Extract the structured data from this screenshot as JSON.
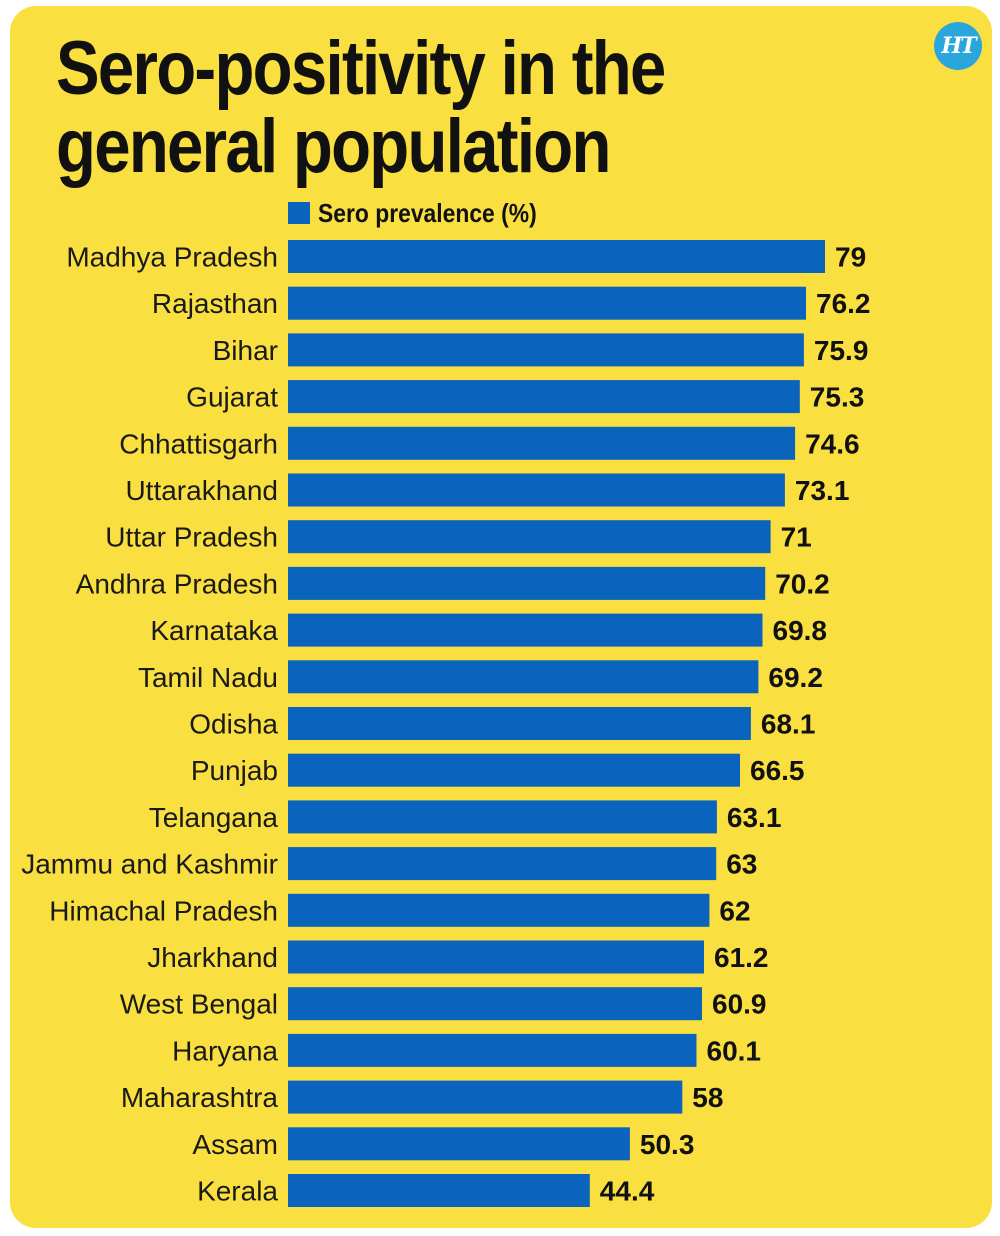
{
  "brand": {
    "logo_text": "HT",
    "logo_color": "#2aa6dc"
  },
  "colors": {
    "background": "#f9df40",
    "bar": "#0a63bd",
    "text": "#111111"
  },
  "chart_data": {
    "type": "bar",
    "orientation": "horizontal",
    "title": "Sero-positivity in the general population",
    "legend": [
      "Sero prevalence (%)"
    ],
    "categories": [
      "Madhya Pradesh",
      "Rajasthan",
      "Bihar",
      "Gujarat",
      "Chhattisgarh",
      "Uttarakhand",
      "Uttar Pradesh",
      "Andhra Pradesh",
      "Karnataka",
      "Tamil Nadu",
      "Odisha",
      "Punjab",
      "Telangana",
      "Jammu and Kashmir",
      "Himachal Pradesh",
      "Jharkhand",
      "West Bengal",
      "Haryana",
      "Maharashtra",
      "Assam",
      "Kerala"
    ],
    "value_labels": [
      "79",
      "76.2",
      "75.9",
      "75.3",
      "74.6",
      "73.1",
      "71",
      "70.2",
      "69.8",
      "69.2",
      "68.1",
      "66.5",
      "63.1",
      "63",
      "62",
      "61.2",
      "60.9",
      "60.1",
      "58",
      "50.3",
      "44.4"
    ],
    "series": [
      {
        "name": "Sero prevalence (%)",
        "values": [
          79,
          76.2,
          75.9,
          75.3,
          74.6,
          73.1,
          71,
          70.2,
          69.8,
          69.2,
          68.1,
          66.5,
          63.1,
          63,
          62,
          61.2,
          60.9,
          60.1,
          58,
          50.3,
          44.4
        ]
      }
    ],
    "xlim": [
      0,
      79
    ]
  }
}
